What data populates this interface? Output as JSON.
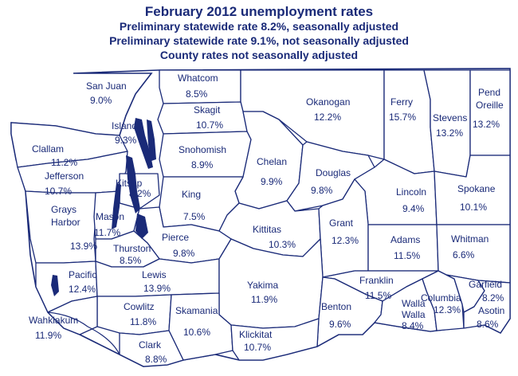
{
  "title": "February 2012 unemployment rates",
  "subtitle_lines": [
    "Preliminary statewide rate 8.2%, seasonally adjusted",
    "Preliminary statewide rate 9.1%, not seasonally adjusted",
    "County rates not seasonally adjusted"
  ],
  "colors": {
    "ink": "#1a2a78",
    "background": "#ffffff"
  },
  "counties": [
    {
      "id": "san-juan",
      "name": "San Juan",
      "rate": "9.0%"
    },
    {
      "id": "whatcom",
      "name": "Whatcom",
      "rate": "8.5%"
    },
    {
      "id": "okanogan",
      "name": "Okanogan",
      "rate": "12.2%"
    },
    {
      "id": "ferry",
      "name": "Ferry",
      "rate": "15.7%"
    },
    {
      "id": "stevens",
      "name": "Stevens",
      "rate": "13.2%"
    },
    {
      "id": "pend-oreille",
      "name": "Pend Oreille",
      "rate": "13.2%"
    },
    {
      "id": "skagit",
      "name": "Skagit",
      "rate": "10.7%"
    },
    {
      "id": "island",
      "name": "Island",
      "rate": "9.3%"
    },
    {
      "id": "clallam",
      "name": "Clallam",
      "rate": "11.2%"
    },
    {
      "id": "snohomish",
      "name": "Snohomish",
      "rate": "8.9%"
    },
    {
      "id": "chelan",
      "name": "Chelan",
      "rate": "9.9%"
    },
    {
      "id": "douglas",
      "name": "Douglas",
      "rate": "9.8%"
    },
    {
      "id": "jefferson",
      "name": "Jefferson",
      "rate": "10.7%"
    },
    {
      "id": "kitsap",
      "name": "Kitsap",
      "rate": "8.2%"
    },
    {
      "id": "king",
      "name": "King",
      "rate": "7.5%"
    },
    {
      "id": "lincoln",
      "name": "Lincoln",
      "rate": "9.4%"
    },
    {
      "id": "spokane",
      "name": "Spokane",
      "rate": "10.1%"
    },
    {
      "id": "grays-harbor",
      "name": "Grays Harbor",
      "rate": "13.9%"
    },
    {
      "id": "mason",
      "name": "Mason",
      "rate": "11.7%"
    },
    {
      "id": "kittitas",
      "name": "Kittitas",
      "rate": "10.3%"
    },
    {
      "id": "grant",
      "name": "Grant",
      "rate": "12.3%"
    },
    {
      "id": "pierce",
      "name": "Pierce",
      "rate": "9.8%"
    },
    {
      "id": "thurston",
      "name": "Thurston",
      "rate": "8.5%"
    },
    {
      "id": "adams",
      "name": "Adams",
      "rate": "11.5%"
    },
    {
      "id": "whitman",
      "name": "Whitman",
      "rate": "6.6%"
    },
    {
      "id": "pacific",
      "name": "Pacific",
      "rate": "12.4%"
    },
    {
      "id": "lewis",
      "name": "Lewis",
      "rate": "13.9%"
    },
    {
      "id": "yakima",
      "name": "Yakima",
      "rate": "11.9%"
    },
    {
      "id": "franklin",
      "name": "Franklin",
      "rate": "11.5%"
    },
    {
      "id": "garfield",
      "name": "Garfield",
      "rate": "8.2%"
    },
    {
      "id": "cowlitz",
      "name": "Cowlitz",
      "rate": "11.8%"
    },
    {
      "id": "skamania",
      "name": "Skamania",
      "rate": "10.6%"
    },
    {
      "id": "benton",
      "name": "Benton",
      "rate": "9.6%"
    },
    {
      "id": "columbia",
      "name": "Columbia",
      "rate": "12.3%"
    },
    {
      "id": "walla-walla",
      "name": "Walla Walla",
      "rate": "8.4%"
    },
    {
      "id": "asotin",
      "name": "Asotin",
      "rate": "8.6%"
    },
    {
      "id": "wahkiakum",
      "name": "Wahkiakum",
      "rate": "11.9%"
    },
    {
      "id": "clark",
      "name": "Clark",
      "rate": "8.8%"
    },
    {
      "id": "klickitat",
      "name": "Klickitat",
      "rate": "10.7%"
    }
  ]
}
